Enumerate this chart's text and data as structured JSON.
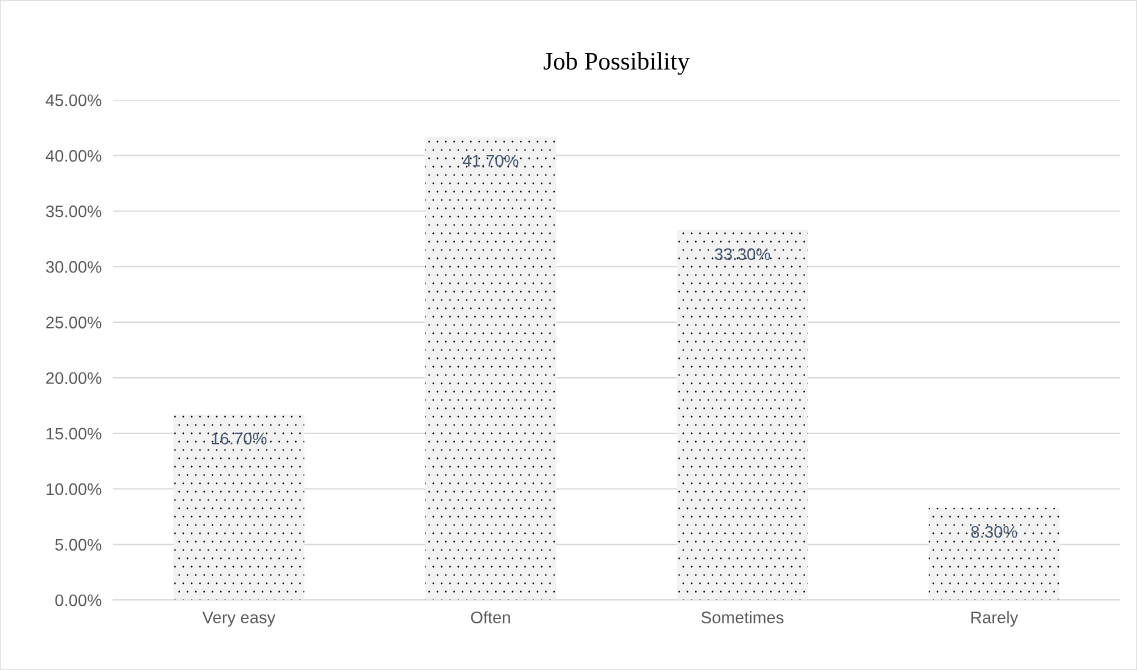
{
  "chart_data": {
    "type": "bar",
    "title": "Job Possibility",
    "categories": [
      "Very easy",
      "Often",
      "Sometimes",
      "Rarely"
    ],
    "values": [
      16.7,
      41.7,
      33.3,
      8.3
    ],
    "value_labels": [
      "16.70%",
      "41.70%",
      "33.30%",
      "8.30%"
    ],
    "color": "#f2f2f2",
    "ylim": [
      0,
      45
    ],
    "yticks": [
      {
        "value": 0,
        "label": "0.00%"
      },
      {
        "value": 5,
        "label": "5.00%"
      },
      {
        "value": 10,
        "label": "10.00%"
      },
      {
        "value": 15,
        "label": "15.00%"
      },
      {
        "value": 20,
        "label": "20.00%"
      },
      {
        "value": 25,
        "label": "25.00%"
      },
      {
        "value": 30,
        "label": "30.00%"
      },
      {
        "value": 35,
        "label": "35.00%"
      },
      {
        "value": 40,
        "label": "40.00%"
      },
      {
        "value": 45,
        "label": "45.00%"
      }
    ],
    "grid": "y"
  }
}
